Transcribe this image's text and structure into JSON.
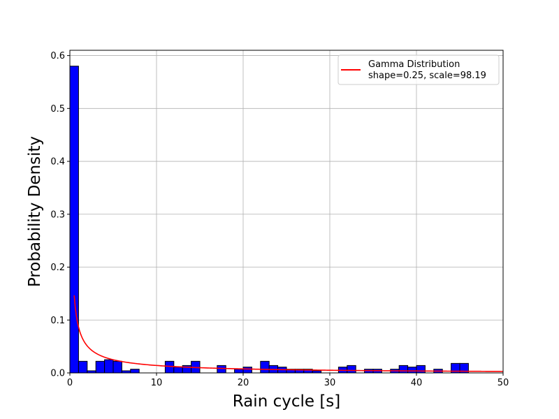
{
  "chart_data": {
    "type": "histogram",
    "xlabel": "Rain cycle [s]",
    "ylabel": "Probability Density",
    "xlim": [
      0,
      50
    ],
    "ylim": [
      0,
      0.61
    ],
    "xticks": [
      0,
      10,
      20,
      30,
      40,
      50
    ],
    "yticks": [
      0.0,
      0.1,
      0.2,
      0.3,
      0.4,
      0.5,
      0.6
    ],
    "xtick_labels": [
      "0",
      "10",
      "20",
      "30",
      "40",
      "50"
    ],
    "ytick_labels": [
      "0.0",
      "0.1",
      "0.2",
      "0.3",
      "0.4",
      "0.5",
      "0.6"
    ],
    "grid": true,
    "bar_color": "#0000ff",
    "bar_edge_color": "#000000",
    "bin_width": 1,
    "bins": [
      {
        "x0": 0,
        "x1": 1,
        "density": 0.58
      },
      {
        "x0": 1,
        "x1": 2,
        "density": 0.022
      },
      {
        "x0": 2,
        "x1": 3,
        "density": 0.004
      },
      {
        "x0": 3,
        "x1": 4,
        "density": 0.022
      },
      {
        "x0": 4,
        "x1": 5,
        "density": 0.025
      },
      {
        "x0": 5,
        "x1": 6,
        "density": 0.022
      },
      {
        "x0": 6,
        "x1": 7,
        "density": 0.004
      },
      {
        "x0": 7,
        "x1": 8,
        "density": 0.007
      },
      {
        "x0": 11,
        "x1": 12,
        "density": 0.022
      },
      {
        "x0": 12,
        "x1": 13,
        "density": 0.011
      },
      {
        "x0": 13,
        "x1": 14,
        "density": 0.014
      },
      {
        "x0": 14,
        "x1": 15,
        "density": 0.022
      },
      {
        "x0": 17,
        "x1": 18,
        "density": 0.014
      },
      {
        "x0": 19,
        "x1": 20,
        "density": 0.007
      },
      {
        "x0": 20,
        "x1": 21,
        "density": 0.011
      },
      {
        "x0": 22,
        "x1": 23,
        "density": 0.022
      },
      {
        "x0": 23,
        "x1": 24,
        "density": 0.014
      },
      {
        "x0": 24,
        "x1": 25,
        "density": 0.011
      },
      {
        "x0": 25,
        "x1": 26,
        "density": 0.007
      },
      {
        "x0": 26,
        "x1": 27,
        "density": 0.007
      },
      {
        "x0": 27,
        "x1": 28,
        "density": 0.007
      },
      {
        "x0": 28,
        "x1": 29,
        "density": 0.004
      },
      {
        "x0": 31,
        "x1": 32,
        "density": 0.011
      },
      {
        "x0": 32,
        "x1": 33,
        "density": 0.014
      },
      {
        "x0": 34,
        "x1": 35,
        "density": 0.007
      },
      {
        "x0": 35,
        "x1": 36,
        "density": 0.007
      },
      {
        "x0": 37,
        "x1": 38,
        "density": 0.007
      },
      {
        "x0": 38,
        "x1": 39,
        "density": 0.014
      },
      {
        "x0": 39,
        "x1": 40,
        "density": 0.011
      },
      {
        "x0": 40,
        "x1": 41,
        "density": 0.014
      },
      {
        "x0": 42,
        "x1": 43,
        "density": 0.007
      },
      {
        "x0": 44,
        "x1": 45,
        "density": 0.018
      },
      {
        "x0": 45,
        "x1": 46,
        "density": 0.018
      }
    ],
    "series": [
      {
        "name": "Gamma Distribution\nshape=0.25, scale=98.19",
        "type": "line",
        "color": "#ff0000",
        "shape": 0.25,
        "scale": 98.19,
        "x_start": 0.5,
        "x_end": 50
      }
    ],
    "legend": {
      "position": "top-right",
      "line1": "Gamma Distribution",
      "line2": "shape=0.25, scale=98.19"
    }
  }
}
